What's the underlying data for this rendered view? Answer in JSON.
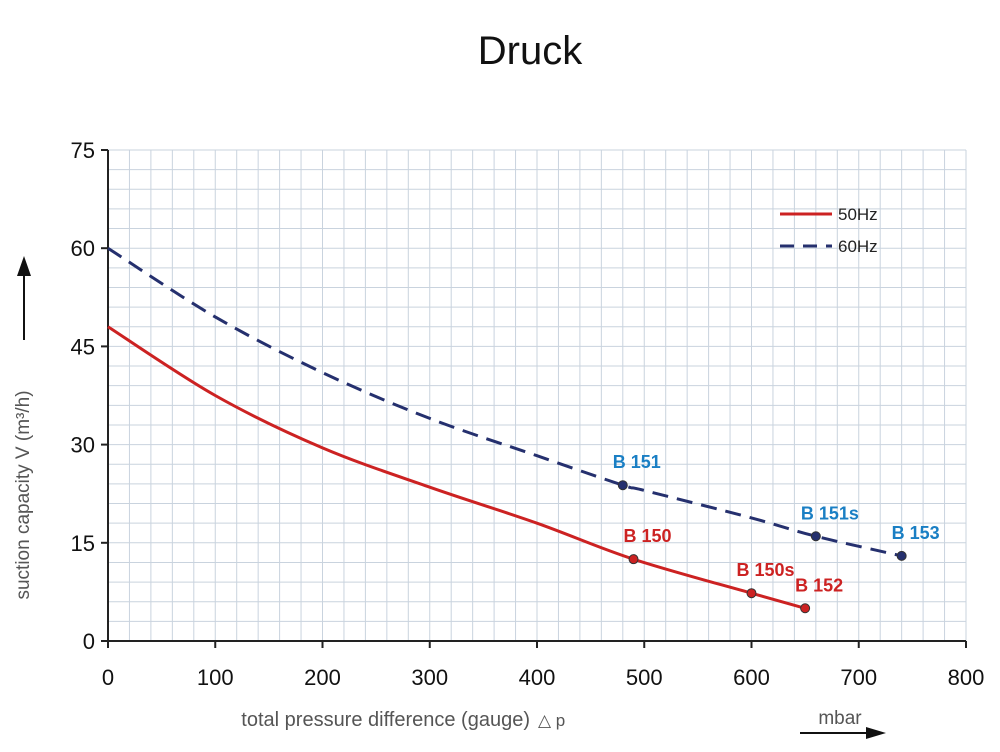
{
  "chart_data": {
    "type": "line",
    "title": "Druck",
    "xlabel": "total pressure difference (gauge)",
    "xlabel_symbol": "△ p",
    "xunit": "mbar",
    "ylabel": "suction capacity V (m³/h)",
    "xlim": [
      0,
      800
    ],
    "ylim": [
      0,
      75
    ],
    "x_ticks": [
      0,
      100,
      200,
      300,
      400,
      500,
      600,
      700,
      800
    ],
    "y_ticks": [
      0,
      15,
      30,
      45,
      60,
      75
    ],
    "grid": true,
    "legend_position": "top-right",
    "series": [
      {
        "name": "50Hz",
        "style": "solid",
        "color": "#cc2222",
        "x": [
          0,
          100,
          200,
          300,
          400,
          490,
          600,
          650
        ],
        "y": [
          48,
          37.5,
          29.5,
          23.5,
          18,
          12.5,
          7.3,
          5
        ]
      },
      {
        "name": "60Hz",
        "style": "dashed",
        "color": "#25306e",
        "x": [
          0,
          100,
          200,
          300,
          400,
          480,
          500,
          600,
          660,
          740
        ],
        "y": [
          60,
          49.5,
          41,
          34,
          28.3,
          23.8,
          23,
          18.8,
          16,
          13
        ]
      }
    ],
    "annotations": [
      {
        "text": "B 150",
        "x": 490,
        "y": 12.5,
        "series": "50Hz",
        "color": "#cc2222"
      },
      {
        "text": "B 150s",
        "x": 600,
        "y": 7.3,
        "series": "50Hz",
        "color": "#cc2222"
      },
      {
        "text": "B 152",
        "x": 650,
        "y": 5,
        "series": "50Hz",
        "color": "#cc2222"
      },
      {
        "text": "B 151",
        "x": 480,
        "y": 23.8,
        "series": "60Hz",
        "color": "#1a7fc4"
      },
      {
        "text": "B 151s",
        "x": 660,
        "y": 16,
        "series": "60Hz",
        "color": "#1a7fc4"
      },
      {
        "text": "B 153",
        "x": 740,
        "y": 13,
        "series": "60Hz",
        "color": "#1a7fc4"
      }
    ]
  }
}
